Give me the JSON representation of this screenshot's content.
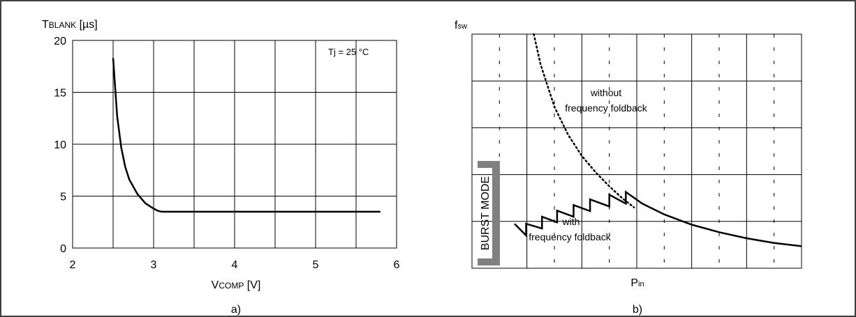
{
  "figure": {
    "border_color": "#000000",
    "grid_color": "#000000"
  },
  "chart_data": [
    {
      "id": "a",
      "type": "line",
      "panel_label": "a)",
      "ylabel_main": "T",
      "ylabel_sub": "BLANK",
      "ylabel_unit": " [µs]",
      "xlabel_main": "V",
      "xlabel_sub": "COMP",
      "xlabel_unit": " [V]",
      "annotation": "Tj = 25 °C",
      "xlim": [
        2,
        6
      ],
      "ylim": [
        0,
        20
      ],
      "xticks": [
        "2",
        "3",
        "4",
        "5",
        "6"
      ],
      "yticks": [
        "0",
        "5",
        "10",
        "15",
        "20"
      ],
      "grid": true,
      "line_color": "#000000",
      "series": [
        {
          "x": [
            2.5,
            2.55,
            2.6,
            2.65,
            2.7,
            2.8,
            2.9,
            3.0,
            3.05,
            3.1,
            3.5,
            4.0,
            4.5,
            5.0,
            5.5,
            5.8
          ],
          "y": [
            18.3,
            12.7,
            9.7,
            7.8,
            6.6,
            5.2,
            4.3,
            3.8,
            3.6,
            3.5,
            3.5,
            3.5,
            3.5,
            3.5,
            3.5,
            3.5
          ]
        }
      ]
    },
    {
      "id": "b",
      "type": "line",
      "panel_label": "b)",
      "ylabel_main": "f",
      "ylabel_sub": "sw",
      "xlabel_main": "P",
      "xlabel_sub": "in",
      "xlim": [
        0,
        12
      ],
      "ylim": [
        0,
        5
      ],
      "grid": true,
      "burst_label": "BURST MODE",
      "burst_color": "#808080",
      "annotations": [
        {
          "lines": [
            "without",
            "frequency foldback"
          ]
        },
        {
          "lines": [
            "with",
            "frequency foldback"
          ]
        }
      ],
      "series": [
        {
          "style": "dotted",
          "x": [
            2.25,
            2.5,
            3.0,
            3.5,
            4.0,
            4.5,
            5.0,
            5.5,
            5.9
          ],
          "y": [
            5.0,
            4.35,
            3.45,
            2.85,
            2.4,
            2.05,
            1.75,
            1.48,
            1.3
          ]
        },
        {
          "style": "solid",
          "x": [
            1.55,
            1.97,
            1.97,
            2.55,
            2.55,
            3.1,
            3.1,
            3.7,
            3.7,
            4.3,
            4.3,
            5.0,
            5.0,
            5.6,
            5.6,
            6.2,
            7.0,
            8.0,
            9.0,
            10.0,
            11.0,
            12.0
          ],
          "y": [
            0.95,
            0.7,
            0.95,
            0.85,
            1.1,
            0.98,
            1.23,
            1.1,
            1.35,
            1.22,
            1.47,
            1.32,
            1.57,
            1.38,
            1.63,
            1.38,
            1.15,
            0.93,
            0.77,
            0.64,
            0.54,
            0.47
          ]
        }
      ]
    }
  ]
}
